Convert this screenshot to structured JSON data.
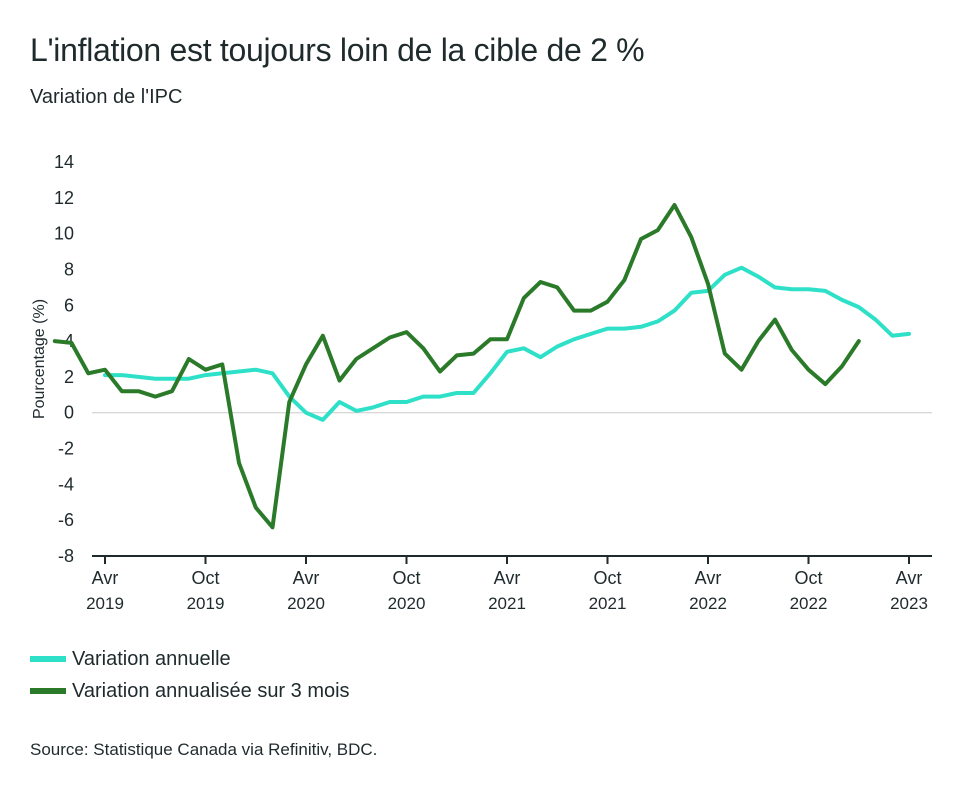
{
  "title": "L'inflation est toujours loin de la cible de 2 %",
  "subtitle": "Variation de l'IPC",
  "source": "Source: Statistique Canada via Refinitiv, BDC.",
  "chart_data": {
    "type": "line",
    "ylabel": "Pourcentage (%)",
    "ylim": [
      -8,
      14
    ],
    "yticks": [
      14,
      12,
      10,
      8,
      6,
      4,
      2,
      0,
      -2,
      -4,
      -6,
      -8
    ],
    "x_start": "2019-01",
    "xticks": [
      {
        "month": "Avr",
        "year": "2019",
        "date": "2019-04"
      },
      {
        "month": "Oct",
        "year": "2019",
        "date": "2019-10"
      },
      {
        "month": "Avr",
        "year": "2020",
        "date": "2020-04"
      },
      {
        "month": "Oct",
        "year": "2020",
        "date": "2020-10"
      },
      {
        "month": "Avr",
        "year": "2021",
        "date": "2021-04"
      },
      {
        "month": "Oct",
        "year": "2021",
        "date": "2021-10"
      },
      {
        "month": "Avr",
        "year": "2022",
        "date": "2022-04"
      },
      {
        "month": "Oct",
        "year": "2022",
        "date": "2022-10"
      },
      {
        "month": "Avr",
        "year": "2023",
        "date": "2023-04"
      }
    ],
    "series": [
      {
        "name": "Variation annuelle",
        "color": "#2fe0c8",
        "values": [
          null,
          null,
          null,
          2.1,
          2.1,
          2.0,
          1.9,
          1.9,
          1.9,
          2.1,
          2.2,
          2.3,
          2.4,
          2.2,
          0.9,
          0.0,
          -0.4,
          0.6,
          0.1,
          0.3,
          0.6,
          0.6,
          0.9,
          0.9,
          1.1,
          1.1,
          2.2,
          3.4,
          3.6,
          3.1,
          3.7,
          4.1,
          4.4,
          4.7,
          4.7,
          4.8,
          5.1,
          5.7,
          6.7,
          6.8,
          7.7,
          8.1,
          7.6,
          7.0,
          6.9,
          6.9,
          6.8,
          6.3,
          5.9,
          5.2,
          4.3,
          4.4
        ]
      },
      {
        "name": "Variation annualisée sur 3 mois",
        "color": "#2a7a2a",
        "values": [
          4.0,
          3.9,
          2.2,
          2.4,
          1.2,
          1.2,
          0.9,
          1.2,
          3.0,
          2.4,
          2.7,
          -2.8,
          -5.3,
          -6.4,
          0.6,
          2.7,
          4.3,
          1.8,
          3.0,
          3.6,
          4.2,
          4.5,
          3.6,
          2.3,
          3.2,
          3.3,
          4.1,
          4.1,
          6.4,
          7.3,
          7.0,
          5.7,
          5.7,
          6.2,
          7.4,
          9.7,
          10.2,
          11.6,
          9.8,
          7.2,
          3.3,
          2.4,
          4.0,
          5.2,
          3.5,
          2.4,
          1.6,
          2.6,
          4.0
        ]
      }
    ]
  }
}
